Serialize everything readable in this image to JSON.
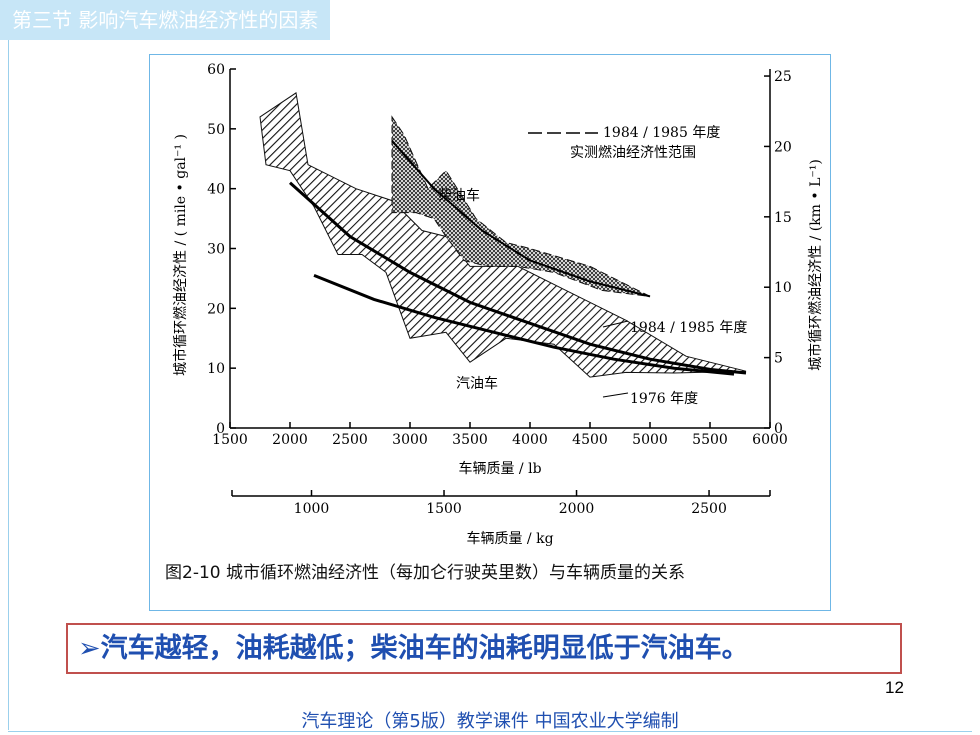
{
  "slide": {
    "section_title": "第三节  影响汽车燃油经济性的因素",
    "conclusion": "➢汽车越轻，油耗越低；柴油车的油耗明显低于汽油车。",
    "page_number": "12",
    "footer": "汽车理论（第5版）教学课件   中国农业大学编制",
    "colors": {
      "title_band": "#c7e6f7",
      "accent_blue": "#1f4fb0",
      "conclusion_border": "#c0504d",
      "frame": "#6fb7e6"
    }
  },
  "chart_data": {
    "type": "area",
    "caption": "图2-10   城市循环燃油经济性（每加仑行驶英里数）与车辆质量的关系",
    "xlabel": "车辆质量 / lb",
    "ylabel": "城市循环燃油经济性 / ( mile • gal⁻¹ )",
    "y2label": "城市循环燃油经济性 / (km • L⁻¹)",
    "x2label": "车辆质量 / kg",
    "xlim": [
      1500,
      6000
    ],
    "ylim": [
      0,
      60
    ],
    "y2lim": [
      0,
      25.5
    ],
    "x_ticks": [
      1500,
      2000,
      2500,
      3000,
      3500,
      4000,
      4500,
      5000,
      5500,
      6000
    ],
    "y_ticks": [
      0,
      10,
      20,
      30,
      40,
      50,
      60
    ],
    "y2_ticks": [
      0,
      5,
      10,
      15,
      20,
      25
    ],
    "x2_ticks": [
      1000,
      1500,
      2000,
      2500
    ],
    "legend": {
      "dash_label_1": "1984 / 1985 年度",
      "dash_label_2": "实测燃油经济性范围"
    },
    "annotations": {
      "diesel": "柴油车",
      "gasoline": "汽油车",
      "curve_1984": "1984 / 1985 年度",
      "curve_1976": "1976 年度"
    },
    "gasoline_band": {
      "upper": [
        [
          1750,
          52
        ],
        [
          2050,
          56
        ],
        [
          2150,
          44
        ],
        [
          2550,
          40
        ],
        [
          2850,
          38
        ],
        [
          3100,
          33
        ],
        [
          3300,
          32
        ],
        [
          3500,
          27
        ],
        [
          3700,
          27
        ],
        [
          3900,
          27
        ],
        [
          4300,
          23
        ],
        [
          4800,
          18
        ],
        [
          5300,
          12
        ],
        [
          5800,
          9.5
        ]
      ],
      "lower": [
        [
          5800,
          9.5
        ],
        [
          5200,
          9.2
        ],
        [
          4800,
          9.3
        ],
        [
          4500,
          8.5
        ],
        [
          4200,
          14
        ],
        [
          3800,
          15
        ],
        [
          3500,
          11
        ],
        [
          3300,
          16
        ],
        [
          3000,
          15
        ],
        [
          2800,
          26
        ],
        [
          2600,
          29
        ],
        [
          2400,
          29
        ],
        [
          2200,
          37
        ],
        [
          2000,
          43
        ],
        [
          1800,
          44
        ],
        [
          1750,
          52
        ]
      ]
    },
    "diesel_band": {
      "upper": [
        [
          2850,
          52
        ],
        [
          2950,
          49
        ],
        [
          3150,
          40
        ],
        [
          3300,
          43
        ],
        [
          3550,
          35
        ],
        [
          3800,
          31
        ],
        [
          4000,
          30
        ],
        [
          4500,
          27
        ],
        [
          5000,
          22
        ]
      ],
      "lower": [
        [
          5000,
          22
        ],
        [
          4600,
          23
        ],
        [
          4200,
          26
        ],
        [
          3900,
          27
        ],
        [
          3650,
          27
        ],
        [
          3450,
          28
        ],
        [
          3300,
          32
        ],
        [
          3200,
          35
        ],
        [
          3050,
          36
        ],
        [
          2850,
          36
        ],
        [
          2850,
          52
        ]
      ]
    },
    "curve_1984": [
      [
        2000,
        41
      ],
      [
        2500,
        32
      ],
      [
        3000,
        26
      ],
      [
        3500,
        21
      ],
      [
        4000,
        17.5
      ],
      [
        4500,
        14
      ],
      [
        5000,
        11.5
      ],
      [
        5500,
        9.8
      ],
      [
        5800,
        9.2
      ]
    ],
    "curve_1976": [
      [
        2200,
        25.5
      ],
      [
        2700,
        21.5
      ],
      [
        3200,
        18.5
      ],
      [
        3700,
        16
      ],
      [
        4200,
        13.5
      ],
      [
        4700,
        11.5
      ],
      [
        5200,
        10
      ],
      [
        5700,
        9
      ]
    ],
    "curve_diesel": [
      [
        2850,
        48
      ],
      [
        3200,
        40
      ],
      [
        3600,
        33
      ],
      [
        4000,
        28
      ],
      [
        4500,
        24.5
      ],
      [
        5000,
        22
      ]
    ]
  }
}
